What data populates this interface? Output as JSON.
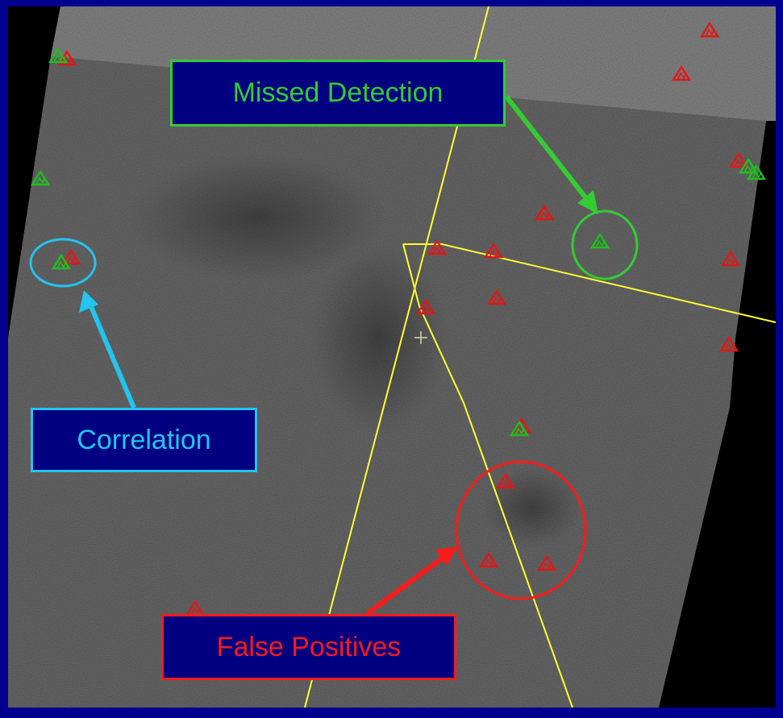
{
  "colors": {
    "background_blue": "#00008f",
    "radar_gray": "#6a6a6a",
    "swath_line": "#ffff33",
    "callout_fill": "#000080",
    "missed_green": "#33cc33",
    "correlation_cyan": "#22c4f0",
    "false_red": "#ff1a1a",
    "marker_red": "#e01818",
    "marker_green": "#1fbf1f"
  },
  "callouts": {
    "missed_detection": {
      "label": "Missed Detection",
      "color": "#33cc33"
    },
    "correlation": {
      "label": "Correlation",
      "color": "#22c4f0"
    },
    "false_positives": {
      "label": "False Positives",
      "color": "#ff1a1a"
    }
  },
  "icons": {
    "marker": "triangle-marker-icon",
    "crosshair": "crosshair-icon"
  }
}
